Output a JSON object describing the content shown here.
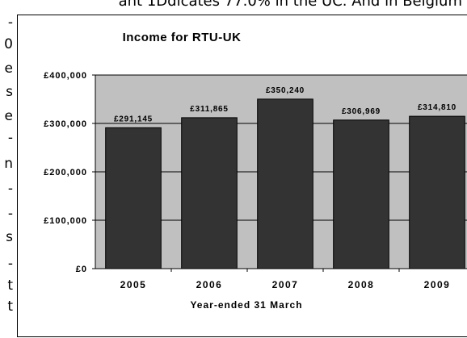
{
  "document": {
    "top_text": "ant 1Ddicates 77.0% in the UC. And in Belgium",
    "left_fragments": [
      "-",
      "0",
      "e",
      "s",
      "e",
      "-",
      "n",
      "-",
      "-",
      "s",
      "-",
      "t",
      "t"
    ]
  },
  "chart_data": {
    "type": "bar",
    "title": "Income for RTU-UK",
    "xlabel": "Year-ended 31 March",
    "ylabel": "",
    "categories": [
      "2005",
      "2006",
      "2007",
      "2008",
      "2009"
    ],
    "values": [
      291145,
      311865,
      350240,
      306969,
      314810
    ],
    "data_labels": [
      "£291,145",
      "£311,865",
      "£350,240",
      "£306,969",
      "£314,810"
    ],
    "ylim": [
      0,
      400000
    ],
    "yticks": [
      0,
      100000,
      200000,
      300000,
      400000
    ],
    "ytick_labels": [
      "£0",
      "£100,000",
      "£200,000",
      "£300,000",
      "£400,000"
    ],
    "grid": true,
    "legend": "none",
    "colors": {
      "plot_background": "#c0c0c0",
      "bar_fill": "#333333",
      "gridline": "#000000"
    }
  }
}
